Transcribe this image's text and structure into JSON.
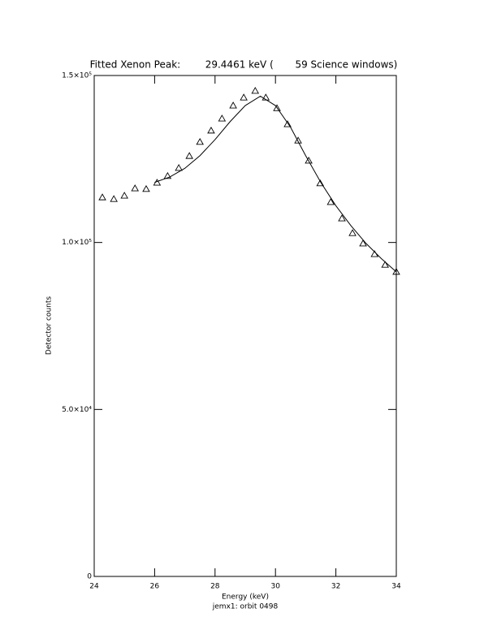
{
  "chart_data": {
    "type": "scatter",
    "title": "Fitted Xenon Peak:        29.4461 keV (       59 Science windows)",
    "xlabel": "Energy (keV)",
    "ylabel": "Detector counts",
    "footnote": "jemx1: orbit 0498",
    "xlim": [
      24,
      34
    ],
    "xticks": [
      24,
      26,
      28,
      30,
      32,
      34
    ],
    "ylim": [
      0,
      150000
    ],
    "yticks": [
      0,
      {
        "value": 50000,
        "label": "5.0×10⁴"
      },
      {
        "value": 100000,
        "label": "1.0×10⁵"
      },
      {
        "value": 150000,
        "label": "1.5×10⁵"
      }
    ],
    "series": [
      {
        "type": "scatter",
        "marker": "triangle",
        "color": "#000000",
        "x": [
          24.27,
          24.65,
          25.0,
          25.35,
          25.72,
          26.08,
          26.43,
          26.8,
          27.15,
          27.5,
          27.87,
          28.23,
          28.6,
          28.95,
          29.33,
          29.68,
          30.05,
          30.4,
          30.75,
          31.1,
          31.48,
          31.83,
          32.2,
          32.55,
          32.9,
          33.28,
          33.63,
          34.0
        ],
        "values": [
          113500,
          113000,
          114000,
          116200,
          116000,
          117900,
          119900,
          122300,
          125900,
          130100,
          133500,
          137100,
          141000,
          143400,
          145400,
          143400,
          140200,
          135400,
          130500,
          124500,
          117700,
          112100,
          107200,
          102800,
          99700,
          96500,
          93300,
          91200
        ]
      },
      {
        "type": "line",
        "color": "#000000",
        "x": [
          26,
          26.5,
          27,
          27.5,
          28,
          28.5,
          29,
          29.5,
          30,
          30.5,
          31,
          31.5,
          32,
          32.5,
          33,
          33.5,
          34
        ],
        "values": [
          118000,
          119600,
          122200,
          126000,
          130800,
          136200,
          141000,
          143800,
          141000,
          134500,
          126000,
          118000,
          111000,
          105000,
          99700,
          95200,
          91200
        ]
      }
    ]
  }
}
